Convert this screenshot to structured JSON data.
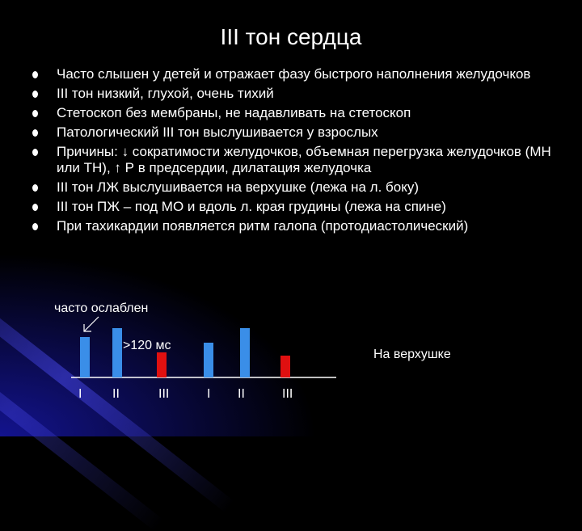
{
  "title": "III тон сердца",
  "bullets": [
    "Часто слышен у детей и отражает фазу быстрого наполнения желудочков",
    "III тон низкий, глухой, очень  тихий",
    "Стетоскоп без мембраны, не надавливать на стетоскоп",
    "Патологический III тон выслушивается у взрослых",
    "Причины: ↓ сократимости желудочков, объемная перегрузка желудочков (МН или ТН), ↑ Р в предсердии, дилатация желудочка",
    "III тон ЛЖ выслушивается на верхушке (лежа на л. боку)",
    "III тон ПЖ – под МО и вдоль л. края грудины (лежа на спине)",
    "При тахикардии появляется ритм галопа (протодиастолический)"
  ],
  "diagram": {
    "annotation_weak": "часто ослаблен",
    "annotation_interval": ">120 мс",
    "location_label": "На верхушке",
    "tone_labels": [
      "I",
      "II",
      "III",
      "I",
      "II",
      "III"
    ],
    "colors": {
      "normal": "#3a8ee8",
      "third": "#e01010"
    }
  }
}
